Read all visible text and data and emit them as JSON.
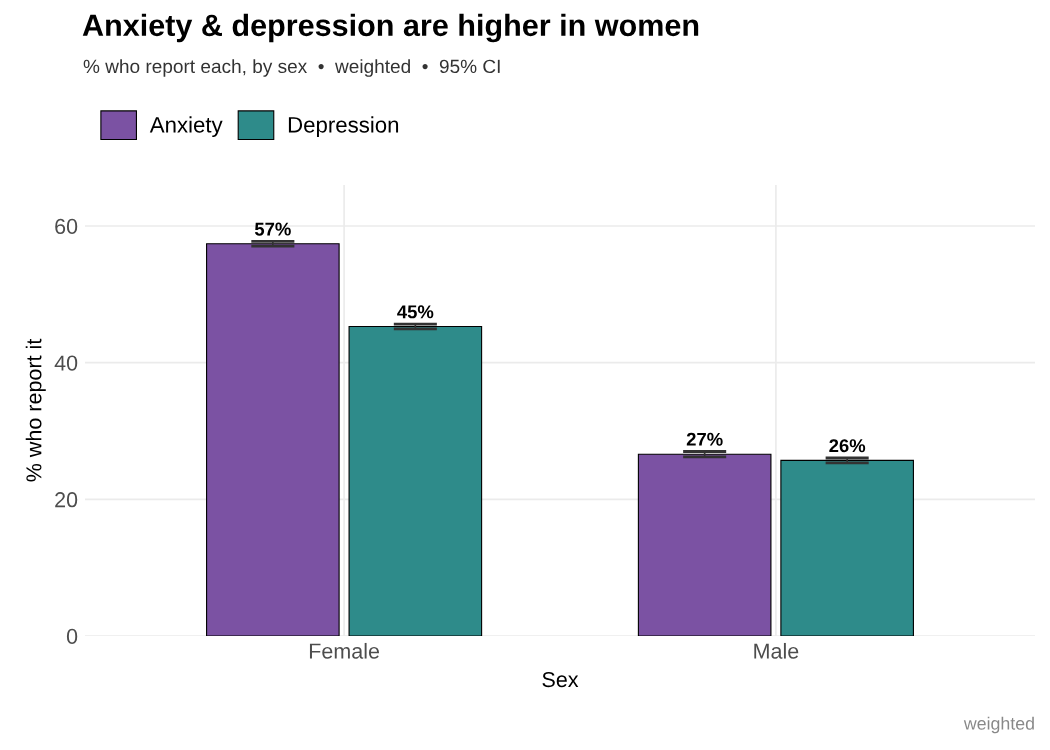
{
  "chart_data": {
    "type": "bar",
    "title": "Anxiety & depression are higher in women",
    "subtitle": "% who report each, by sex  •  weighted  •  95% CI",
    "xlabel": "Sex",
    "ylabel": "% who report it",
    "categories": [
      "Female",
      "Male"
    ],
    "series": [
      {
        "name": "Anxiety",
        "color": "#7b52a3",
        "values": [
          57.4,
          26.6
        ],
        "errors": [
          0.35,
          0.4
        ],
        "value_labels": [
          "57%",
          "27%"
        ]
      },
      {
        "name": "Depression",
        "color": "#2e8b8a",
        "values": [
          45.3,
          25.7
        ],
        "errors": [
          0.35,
          0.35
        ],
        "value_labels": [
          "45%",
          "26%"
        ]
      }
    ],
    "ylim": [
      0,
      66
    ],
    "yticks": [
      0,
      20,
      40,
      60
    ],
    "grid": true,
    "legend": "top left",
    "annotations": [
      "weighted"
    ]
  }
}
